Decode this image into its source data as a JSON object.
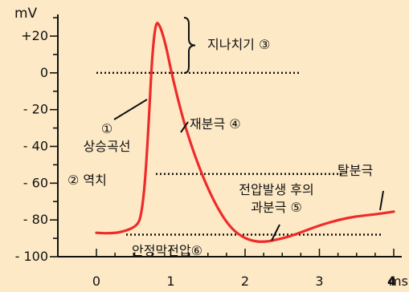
{
  "colors": {
    "panel_bg": "#fde9c6",
    "curve": "#ee2b2b",
    "axis": "#111111",
    "annotation_line": "#111111",
    "text": "#111111"
  },
  "chart_data": {
    "type": "line",
    "title": "",
    "y_unit_label": "mV",
    "x_unit_label": "ms",
    "xlim": [
      0,
      4
    ],
    "ylim": [
      -100,
      30
    ],
    "x_ticks": [
      {
        "value": 0,
        "label": "0"
      },
      {
        "value": 1,
        "label": "1"
      },
      {
        "value": 2,
        "label": "2"
      },
      {
        "value": 3,
        "label": "3"
      },
      {
        "value": 4,
        "label": "4"
      }
    ],
    "y_ticks": [
      {
        "value": 20,
        "label": "+20"
      },
      {
        "value": 0,
        "label": "0"
      },
      {
        "value": -20,
        "label": "- 20"
      },
      {
        "value": -40,
        "label": "- 40"
      },
      {
        "value": -60,
        "label": "- 60"
      },
      {
        "value": -80,
        "label": "- 80"
      },
      {
        "value": -100,
        "label": "- 100"
      }
    ],
    "grid": false,
    "series": [
      {
        "x": [
          0.0,
          0.2,
          0.4,
          0.55,
          0.6,
          0.65,
          0.7,
          0.75,
          0.8,
          0.85,
          0.9,
          0.95,
          1.0,
          1.1,
          1.2,
          1.35,
          1.5,
          1.65,
          1.8,
          1.95,
          2.1,
          2.25,
          2.4,
          2.6,
          2.8,
          3.0,
          3.25,
          3.5,
          3.75,
          4.0
        ],
        "y": [
          -87,
          -87.5,
          -86,
          -83,
          -78,
          -62,
          -30,
          10,
          28,
          26,
          20,
          12,
          2,
          -15,
          -30,
          -48,
          -63,
          -75,
          -84,
          -89,
          -91.5,
          -92,
          -91,
          -89,
          -86,
          -83,
          -80,
          -78,
          -77,
          -75.5
        ]
      }
    ],
    "reference_lines": [
      {
        "kind": "threshold",
        "y": -55,
        "x_range": [
          0.8,
          3.3
        ]
      },
      {
        "kind": "resting",
        "y": -88,
        "x_range": [
          0.4,
          3.85
        ]
      },
      {
        "kind": "zero",
        "y": 0,
        "x_range": [
          0.0,
          2.75
        ]
      }
    ],
    "annotations": [
      {
        "label": "지나치기 ③",
        "kind": "bracket",
        "points": [
          [
            1.5,
            28
          ],
          [
            1.5,
            0
          ]
        ],
        "text_at": [
          1.6,
          17
        ]
      },
      {
        "label": "①\n상승곡선",
        "kind": "leader",
        "from": [
          0.55,
          -17
        ],
        "to": [
          0.7,
          -23
        ],
        "text_at": [
          0.45,
          -28
        ]
      },
      {
        "label": "재분극 ④",
        "kind": "leader",
        "from": [
          1.2,
          -33
        ],
        "to": [
          1.25,
          -28
        ],
        "text_at": [
          1.3,
          -28
        ]
      },
      {
        "label": "② 역치",
        "kind": "text",
        "text_at": [
          0.3,
          -62
        ]
      },
      {
        "label": "탈분극",
        "kind": "dotted-end",
        "text_at": [
          3.3,
          -55
        ]
      },
      {
        "label": "전압발생 후의\n과분극 ⑤",
        "kind": "leader",
        "from": [
          2.4,
          -89
        ],
        "to": [
          2.2,
          -92
        ],
        "text_at": [
          2.0,
          -70
        ]
      },
      {
        "label": "안정막전압⑥",
        "kind": "text",
        "text_at": [
          0.5,
          -95
        ]
      }
    ]
  }
}
